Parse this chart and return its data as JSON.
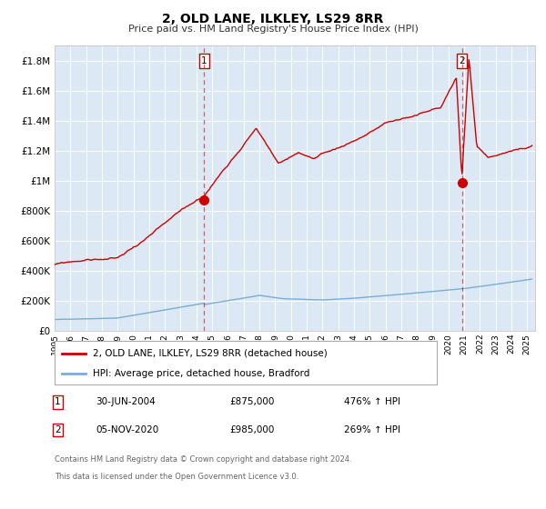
{
  "title": "2, OLD LANE, ILKLEY, LS29 8RR",
  "subtitle": "Price paid vs. HM Land Registry's House Price Index (HPI)",
  "red_label": "2, OLD LANE, ILKLEY, LS29 8RR (detached house)",
  "blue_label": "HPI: Average price, detached house, Bradford",
  "sale1_date": "30-JUN-2004",
  "sale1_price": 875000,
  "sale1_pct": "476% ↑ HPI",
  "sale2_date": "05-NOV-2020",
  "sale2_price": 985000,
  "sale2_pct": "269% ↑ HPI",
  "footer": "Contains HM Land Registry data © Crown copyright and database right 2024.\nThis data is licensed under the Open Government Licence v3.0.",
  "ylim": [
    0,
    1900000
  ],
  "background_color": "#dce9f5",
  "red_color": "#cc0000",
  "blue_color": "#7aadd4",
  "grid_color": "#ffffff",
  "sale1_x_year": 2004.5,
  "sale2_x_year": 2020.85,
  "xmin": 1995,
  "xmax": 2025.3
}
